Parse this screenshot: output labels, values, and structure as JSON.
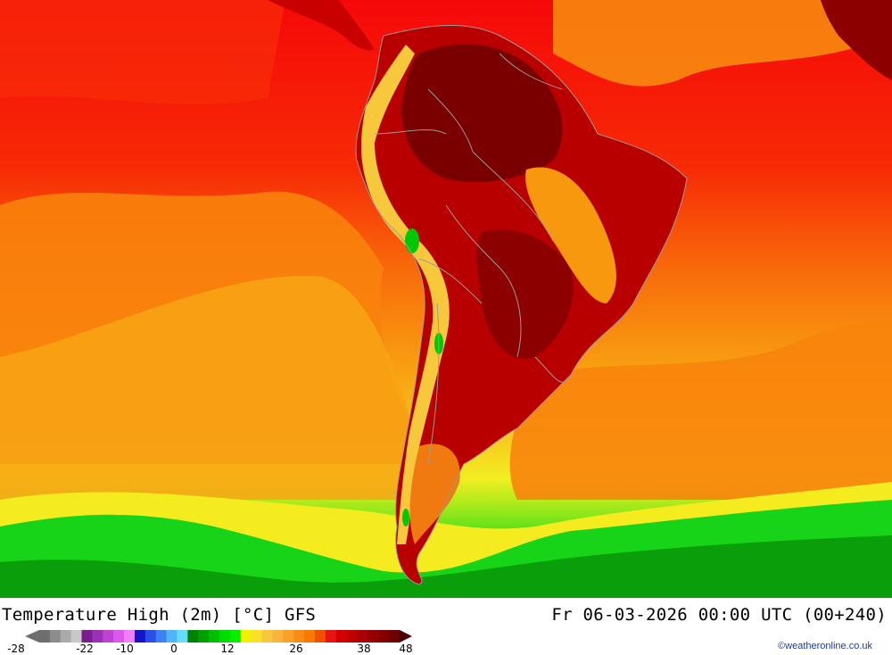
{
  "map": {
    "region": "South America",
    "variable": "Temperature High (2m)",
    "unit": "°C"
  },
  "footer": {
    "title": "Temperature High (2m) [°C] GFS",
    "datetime": "Fr 06-03-2026 00:00 UTC (00+240)",
    "credit": "©weatheronline.co.uk"
  },
  "legend": {
    "colors": [
      "#6e6e6e",
      "#8c8c8c",
      "#aaaaaa",
      "#c8c8c8",
      "#7a1e8c",
      "#9a30b4",
      "#bc44d0",
      "#dc58ea",
      "#f080f8",
      "#1414c8",
      "#2850e6",
      "#3c82f0",
      "#50b4f8",
      "#64dcff",
      "#008200",
      "#00a000",
      "#00be00",
      "#00dc00",
      "#00f000",
      "#f0f000",
      "#f8e028",
      "#f8c83c",
      "#f8b43c",
      "#f8a028",
      "#f88c14",
      "#f87800",
      "#f05000",
      "#e81414",
      "#d40000",
      "#be0000",
      "#a80000",
      "#960000",
      "#820000",
      "#6e0000"
    ],
    "tick_labels": [
      "-28",
      "-22",
      "-10",
      "0",
      "12",
      "26",
      "38",
      "48"
    ]
  }
}
